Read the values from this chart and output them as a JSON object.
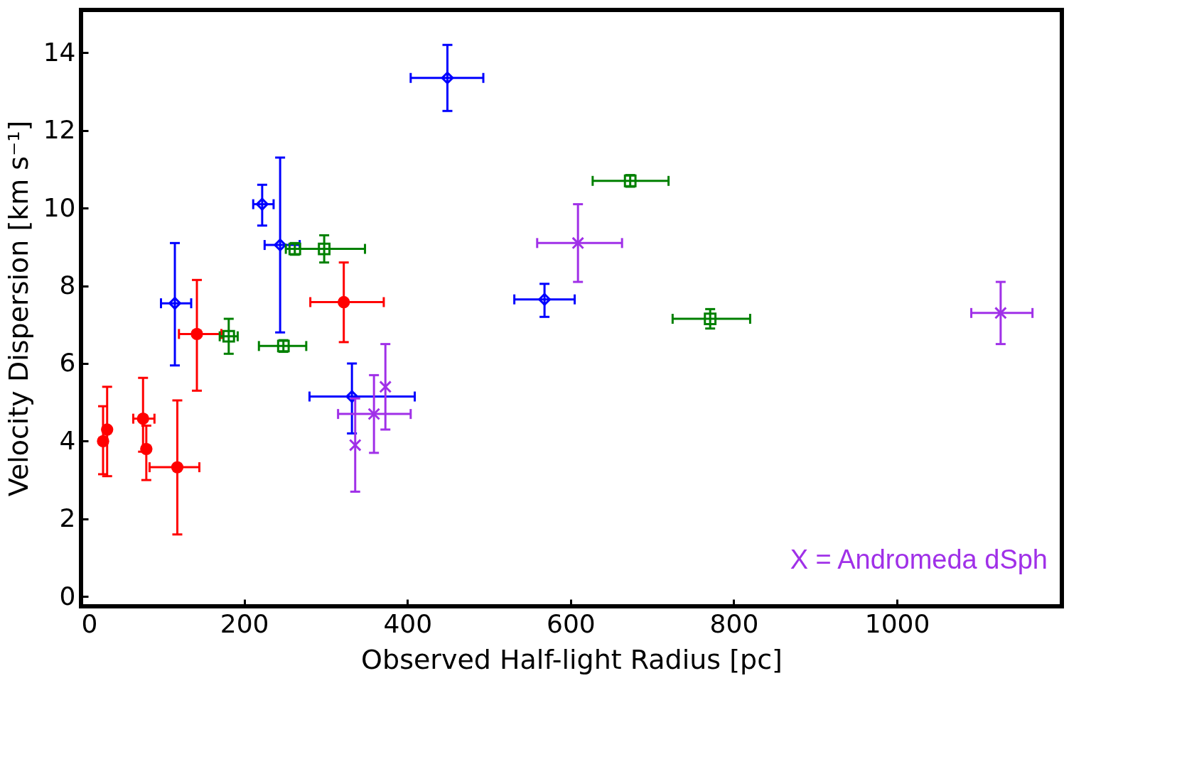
{
  "chart_data": {
    "type": "scatter",
    "xlabel": "Observed Half-light Radius [pc]",
    "ylabel": "Velocity Dispersion [km s⁻¹]",
    "xlim": [
      0,
      1202
    ],
    "ylim": [
      -0.25,
      15.1
    ],
    "xticks": [
      0,
      200,
      400,
      600,
      800,
      1000
    ],
    "yticks": [
      0,
      2,
      4,
      6,
      8,
      10,
      12,
      14
    ],
    "grid": false,
    "annotations": [
      "X = Andromeda dSph"
    ],
    "series": [
      {
        "color": "#ff0000",
        "marker": "circle",
        "x": [
          27,
          32,
          76,
          80,
          118,
          142,
          322
        ],
        "values": [
          4.0,
          4.3,
          4.58,
          3.8,
          3.33,
          6.76,
          7.58
        ],
        "errors": [
          [
            3.15,
            4.9
          ],
          [
            3.1,
            5.4
          ],
          [
            3.73,
            5.63
          ],
          [
            3.0,
            4.4
          ],
          [
            1.6,
            5.05
          ],
          [
            5.3,
            8.15
          ],
          [
            6.55,
            8.6
          ]
        ],
        "xerrors": [
          null,
          null,
          [
            64,
            90
          ],
          null,
          [
            84,
            145
          ],
          [
            120,
            172
          ],
          [
            281,
            371
          ]
        ]
      },
      {
        "color": "#0000ff",
        "marker": "diamond",
        "x": [
          115,
          222,
          244,
          332,
          449,
          568
        ],
        "values": [
          7.55,
          10.1,
          9.05,
          5.15,
          13.35,
          7.65
        ],
        "errors": [
          [
            5.95,
            9.1
          ],
          [
            9.55,
            10.6
          ],
          [
            6.8,
            11.3
          ],
          [
            4.2,
            6.0
          ],
          [
            12.5,
            14.2
          ],
          [
            7.2,
            8.05
          ]
        ],
        "xerrors": [
          [
            98,
            135
          ],
          [
            211,
            236
          ],
          [
            225,
            268
          ],
          [
            280,
            409
          ],
          [
            404,
            493
          ],
          [
            531,
            605
          ]
        ]
      },
      {
        "color": "#008000",
        "marker": "square",
        "x": [
          181,
          248,
          262,
          298,
          673,
          771
        ],
        "values": [
          6.7,
          6.45,
          8.95,
          8.95,
          10.7,
          7.15
        ],
        "errors": [
          [
            6.25,
            7.15
          ],
          [
            6.3,
            6.6
          ],
          [
            8.8,
            9.1
          ],
          [
            8.6,
            9.3
          ],
          [
            10.55,
            10.85
          ],
          [
            6.9,
            7.4
          ]
        ],
        "xerrors": [
          [
            170,
            192
          ],
          [
            218,
            276
          ],
          null,
          [
            251,
            348
          ],
          [
            627,
            720
          ],
          [
            725,
            820
          ]
        ]
      },
      {
        "color": "#a030e8",
        "marker": "cross",
        "x": [
          336,
          359,
          373,
          609,
          1127
        ],
        "values": [
          3.9,
          4.7,
          5.4,
          9.1,
          7.3
        ],
        "errors": [
          [
            2.7,
            5.1
          ],
          [
            3.7,
            5.7
          ],
          [
            4.3,
            6.5
          ],
          [
            8.1,
            10.1
          ],
          [
            6.5,
            8.1
          ]
        ],
        "xerrors": [
          null,
          [
            315,
            404
          ],
          null,
          [
            559,
            663
          ],
          [
            1091,
            1166
          ]
        ]
      }
    ]
  }
}
